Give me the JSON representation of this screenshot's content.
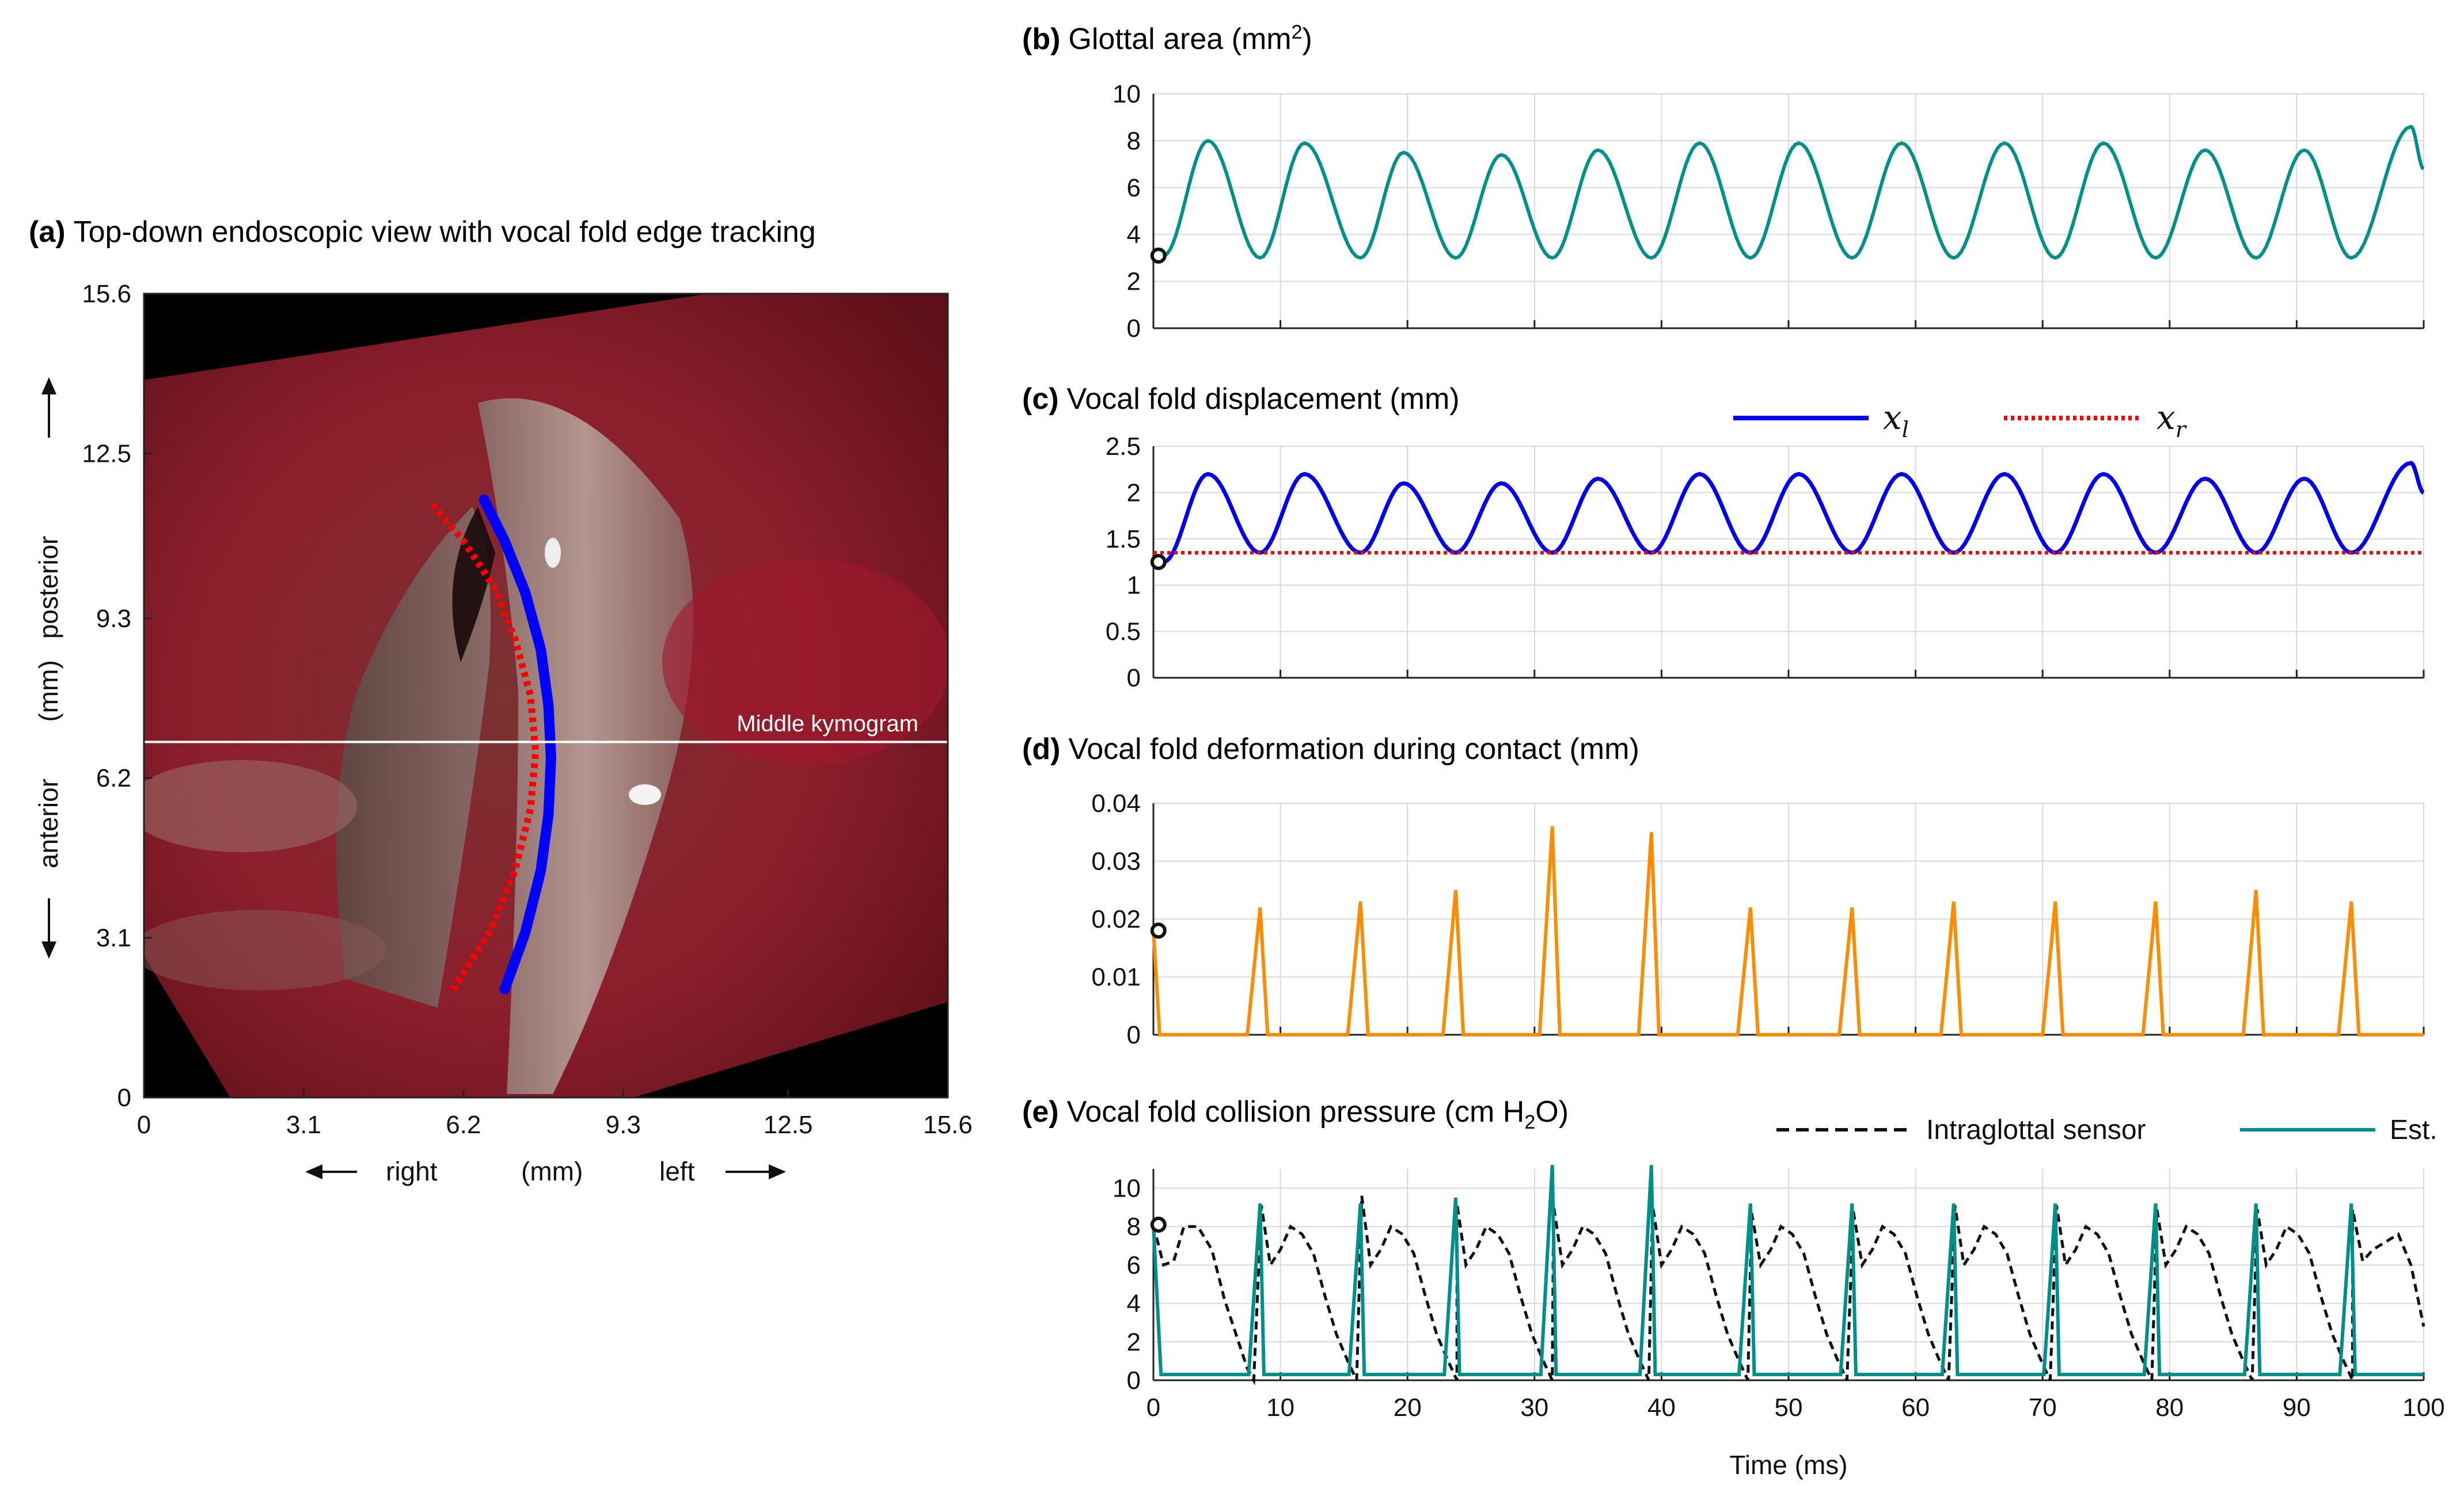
{
  "figure": {
    "panel_a": {
      "label": "(a)",
      "title": "Top-down endoscopic view with vocal fold edge tracking",
      "kymogram_label": "Middle kymogram",
      "y_arrow_up": "posterior",
      "y_unit": "(mm)",
      "y_arrow_down": "anterior",
      "x_arrow_left": "right",
      "x_unit": "(mm)",
      "x_arrow_right": "left"
    },
    "time_label": "Time (ms)"
  },
  "chart_data": [
    {
      "id": "a",
      "type": "image",
      "title": "Top-down endoscopic view with vocal fold edge tracking",
      "xticks": [
        "0",
        "3.1",
        "6.2",
        "9.3",
        "12.5",
        "15.6"
      ],
      "yticks": [
        "0",
        "3.1",
        "6.2",
        "9.3",
        "12.5",
        "15.6"
      ],
      "xlim": [
        0,
        15.6
      ],
      "ylim": [
        0,
        15.6
      ],
      "kymogram_y": 6.9,
      "series": [
        {
          "name": "left edge",
          "color": "#0000ff",
          "style": "solid",
          "x": [
            6.6,
            7.0,
            7.4,
            7.7,
            7.85,
            7.9,
            7.85,
            7.7,
            7.4,
            7.0
          ],
          "y": [
            11.6,
            10.8,
            9.8,
            8.7,
            7.6,
            6.6,
            5.5,
            4.4,
            3.2,
            2.1
          ]
        },
        {
          "name": "right edge",
          "color": "#ff0000",
          "style": "dotted",
          "x": [
            5.6,
            6.2,
            6.8,
            7.2,
            7.5,
            7.6,
            7.5,
            7.2,
            6.7,
            6.0
          ],
          "y": [
            11.5,
            10.8,
            9.9,
            8.9,
            7.8,
            6.7,
            5.6,
            4.4,
            3.2,
            2.1
          ]
        }
      ]
    },
    {
      "id": "b",
      "type": "line",
      "label": "(b)",
      "title": "Glottal area (mm",
      "title_sup": "2",
      "title_end": ")",
      "xlim": [
        0,
        100
      ],
      "ylim": [
        0,
        10
      ],
      "yticks": [
        0,
        2,
        4,
        6,
        8,
        10
      ],
      "period_ms": 7.9,
      "initial_value": 3.1,
      "series": [
        {
          "name": "glottal area",
          "color": "#00908a",
          "peaks": [
            8.0,
            7.9,
            7.5,
            7.4,
            7.6,
            7.9,
            7.9,
            7.9,
            7.9,
            7.9,
            7.6,
            7.6
          ],
          "troughs": [
            3.0,
            3.0,
            3.0,
            3.0,
            3.0,
            3.0,
            3.0,
            3.0,
            3.0,
            3.0,
            3.0,
            3.0
          ],
          "end_peak": 8.6,
          "end_value": 6.8
        }
      ]
    },
    {
      "id": "c",
      "type": "line",
      "label": "(c)",
      "title": "Vocal fold displacement (mm)",
      "xlim": [
        0,
        100
      ],
      "ylim": [
        0,
        2.5
      ],
      "yticks": [
        0,
        0.5,
        1,
        1.5,
        2,
        2.5
      ],
      "initial_value": 1.25,
      "legend": [
        "x_l",
        "x_r"
      ],
      "legend_math": [
        {
          "base": "x",
          "sub": "l"
        },
        {
          "base": "x",
          "sub": "r"
        }
      ],
      "series": [
        {
          "name": "x_l",
          "color": "#0000ee",
          "style": "solid",
          "peaks": [
            2.2,
            2.2,
            2.1,
            2.1,
            2.15,
            2.2,
            2.2,
            2.2,
            2.2,
            2.2,
            2.15,
            2.15
          ],
          "troughs": [
            1.35,
            1.35,
            1.35,
            1.35,
            1.35,
            1.35,
            1.35,
            1.35,
            1.35,
            1.35,
            1.35,
            1.35
          ],
          "end_peak": 2.32,
          "end_value": 2.0
        },
        {
          "name": "x_r",
          "color": "#ff0000",
          "style": "dotted",
          "constant": 1.35
        }
      ]
    },
    {
      "id": "d",
      "type": "line",
      "label": "(d)",
      "title": "Vocal fold deformation during contact (mm)",
      "xlim": [
        0,
        100
      ],
      "ylim": [
        0,
        0.04
      ],
      "yticks": [
        "0",
        "0.01",
        "0.02",
        "0.03",
        "0.04"
      ],
      "initial_value": 0.018,
      "series": [
        {
          "name": "deformation",
          "color": "#ff8c00",
          "spike_times": [
            8.4,
            16.3,
            23.8,
            31.4,
            39.2,
            47.0,
            55.0,
            63.0,
            71.0,
            78.9,
            86.8,
            94.3
          ],
          "spike_values": [
            0.022,
            0.023,
            0.025,
            0.036,
            0.035,
            0.022,
            0.022,
            0.023,
            0.023,
            0.023,
            0.025,
            0.023
          ]
        }
      ]
    },
    {
      "id": "e",
      "type": "line",
      "label": "(e)",
      "title": "Vocal fold collision pressure (cm H",
      "title_sub": "2",
      "title_end": "O)",
      "xlim": [
        0,
        100
      ],
      "ylim": [
        0,
        11
      ],
      "yticks": [
        0,
        2,
        4,
        6,
        8,
        10
      ],
      "xticks": [
        0,
        10,
        20,
        30,
        40,
        50,
        60,
        70,
        80,
        90,
        100
      ],
      "initial_value": 8.1,
      "legend": [
        "Intraglottal sensor",
        "Est."
      ],
      "series": [
        {
          "name": "Intraglottal sensor",
          "color": "#111111",
          "style": "dashed",
          "peak_values": [
            9.4,
            9.1,
            9.6,
            9.2,
            9.1,
            9.1,
            8.7,
            8.8,
            9.1,
            9.1,
            8.9,
            8.9
          ]
        },
        {
          "name": "Est.",
          "color": "#00908a",
          "style": "solid",
          "spike_times": [
            8.4,
            16.3,
            23.8,
            31.4,
            39.2,
            47.0,
            55.0,
            63.0,
            71.0,
            78.9,
            86.8,
            94.3
          ],
          "spike_values": [
            9.2,
            9.2,
            9.5,
            11.2,
            11.2,
            9.2,
            9.2,
            9.2,
            9.2,
            9.2,
            9.2,
            9.2
          ],
          "baseline": 0.3
        }
      ]
    }
  ]
}
